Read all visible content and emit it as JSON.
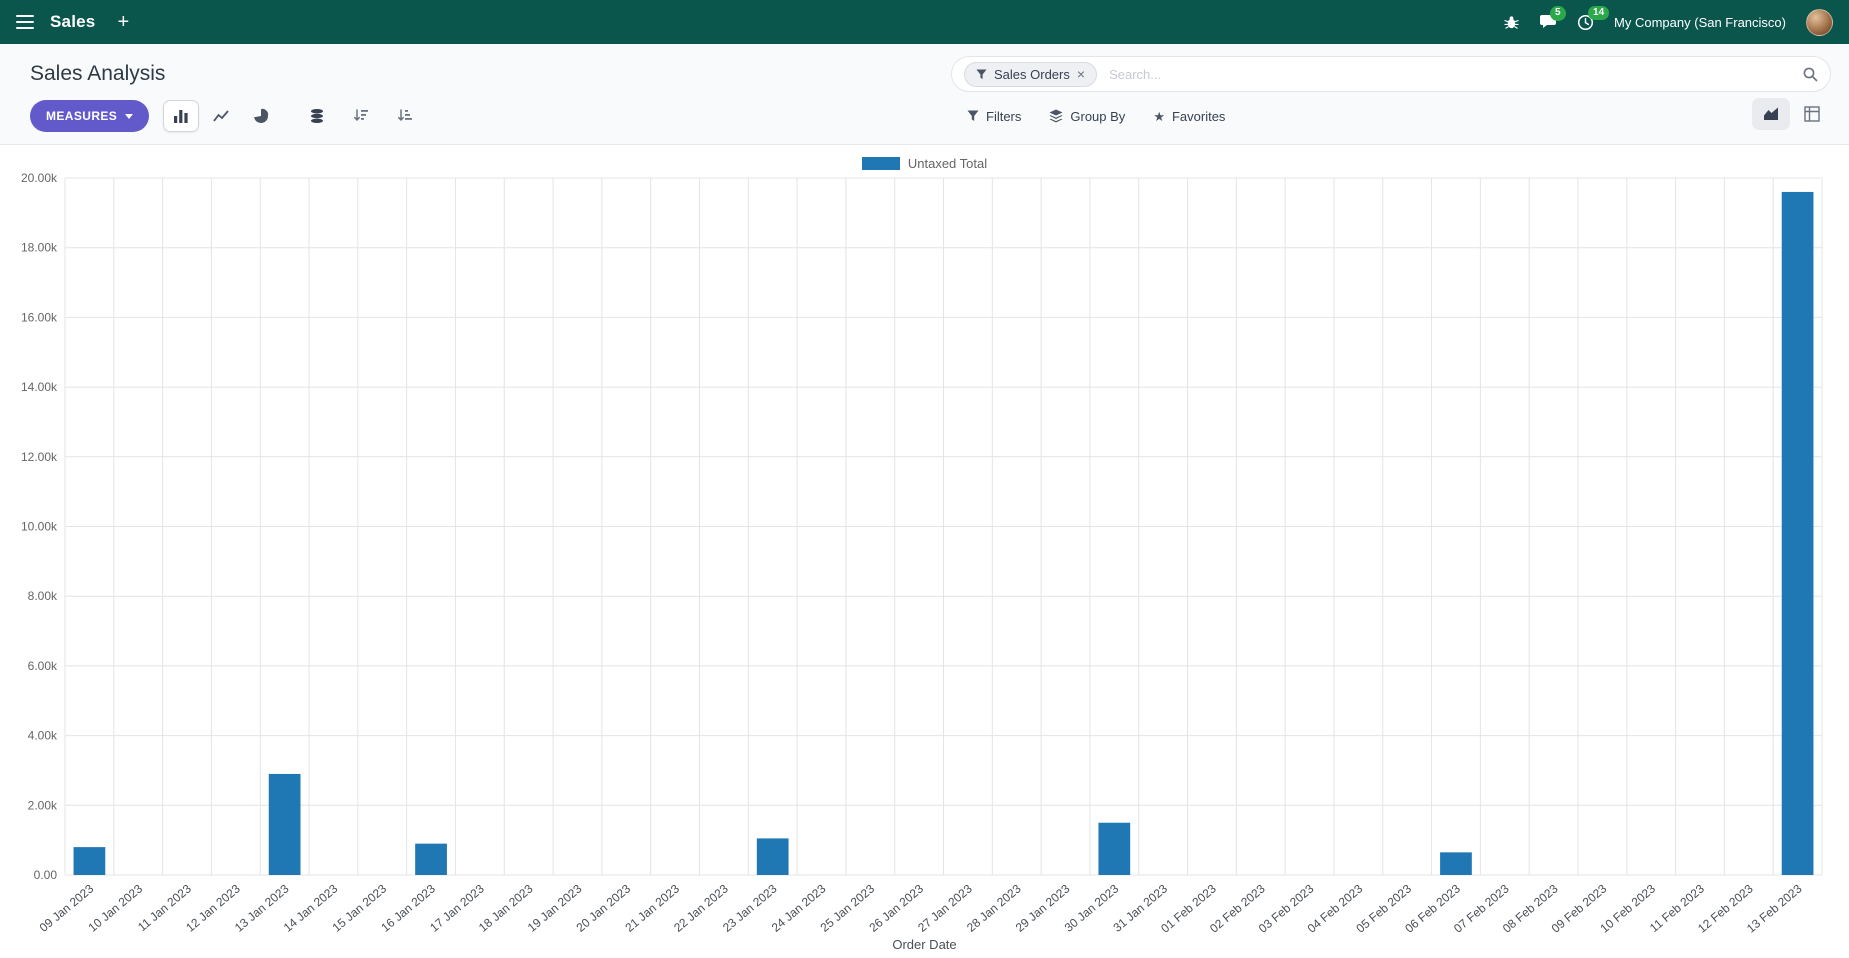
{
  "topbar": {
    "app_name": "Sales",
    "company": "My Company (San Francisco)",
    "messages_badge": "5",
    "activities_badge": "14"
  },
  "icons": {
    "plus": "+",
    "star": "★",
    "close": "×"
  },
  "control_panel": {
    "title": "Sales Analysis",
    "search": {
      "facet": "Sales Orders",
      "placeholder": "Search..."
    },
    "buttons": {
      "measures": "MEASURES",
      "filters": "Filters",
      "group_by": "Group By",
      "favorites": "Favorites"
    }
  },
  "chart_data": {
    "type": "bar",
    "title": "",
    "legend": [
      "Untaxed Total"
    ],
    "legend_position": "top",
    "xlabel": "Order Date",
    "ylabel": "",
    "ylim": [
      0,
      20000
    ],
    "ytick_step": 2000,
    "ytick_labels": [
      "0.00",
      "2.00k",
      "4.00k",
      "6.00k",
      "8.00k",
      "10.00k",
      "12.00k",
      "14.00k",
      "16.00k",
      "18.00k",
      "20.00k"
    ],
    "grid": true,
    "bar_color": "#1f77b4",
    "categories": [
      "09 Jan 2023",
      "10 Jan 2023",
      "11 Jan 2023",
      "12 Jan 2023",
      "13 Jan 2023",
      "14 Jan 2023",
      "15 Jan 2023",
      "16 Jan 2023",
      "17 Jan 2023",
      "18 Jan 2023",
      "19 Jan 2023",
      "20 Jan 2023",
      "21 Jan 2023",
      "22 Jan 2023",
      "23 Jan 2023",
      "24 Jan 2023",
      "25 Jan 2023",
      "26 Jan 2023",
      "27 Jan 2023",
      "28 Jan 2023",
      "29 Jan 2023",
      "30 Jan 2023",
      "31 Jan 2023",
      "01 Feb 2023",
      "02 Feb 2023",
      "03 Feb 2023",
      "04 Feb 2023",
      "05 Feb 2023",
      "06 Feb 2023",
      "07 Feb 2023",
      "08 Feb 2023",
      "09 Feb 2023",
      "10 Feb 2023",
      "11 Feb 2023",
      "12 Feb 2023",
      "13 Feb 2023"
    ],
    "series": [
      {
        "name": "Untaxed Total",
        "values": [
          800,
          0,
          0,
          0,
          2900,
          0,
          0,
          900,
          0,
          0,
          0,
          0,
          0,
          0,
          1050,
          0,
          0,
          0,
          0,
          0,
          0,
          1500,
          0,
          0,
          0,
          0,
          0,
          0,
          650,
          0,
          0,
          0,
          0,
          0,
          0,
          19600
        ]
      }
    ]
  },
  "colors": {
    "topbar_bg": "#0a564c",
    "primary_button": "#625ACB",
    "bar": "#1f77b4",
    "badge": "#2aa84a"
  }
}
